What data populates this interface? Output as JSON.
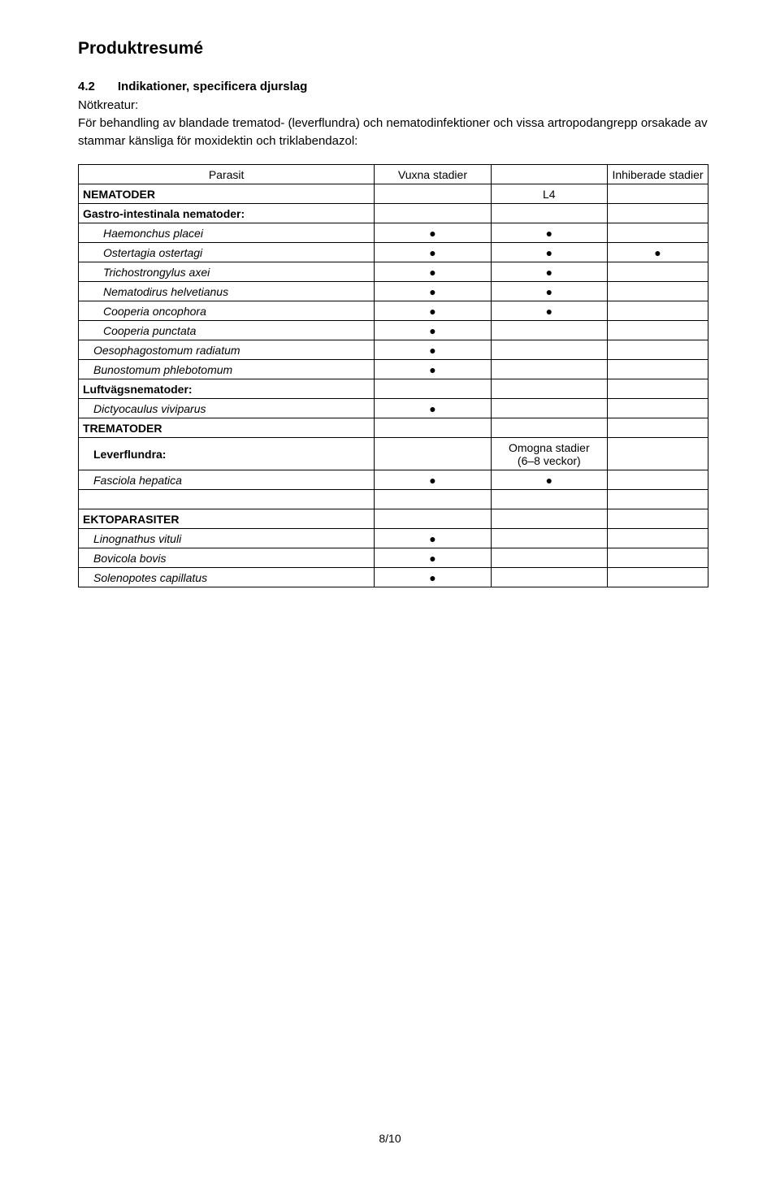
{
  "page": {
    "title": "Produktresumé",
    "section_num": "4.2",
    "section_title": "Indikationer, specificera djurslag",
    "para_line1": "Nötkreatur:",
    "para_lines": "För behandling av blandade trematod- (leverflundra) och nematodinfektioner och vissa artropodangrepp orsakade av stammar känsliga för moxidektin och triklabendazol:",
    "page_number": "8/10"
  },
  "table": {
    "headers": {
      "parasit": "Parasit",
      "vuxna": "Vuxna stadier",
      "l4_blank": "",
      "inhib": "Inhiberade stadier"
    },
    "rows": [
      {
        "label": "NEMATODER",
        "bold": true,
        "indent": 0,
        "vuxna": "",
        "l4": "L4",
        "inhib": ""
      },
      {
        "label": "Gastro-intestinala nematoder:",
        "bold": true,
        "indent": 0,
        "vuxna": "",
        "l4": "",
        "inhib": ""
      },
      {
        "label": "Haemonchus placei",
        "italic": true,
        "indent": 2,
        "vuxna": "●",
        "l4": "●",
        "inhib": ""
      },
      {
        "label": "Ostertagia ostertagi",
        "italic": true,
        "indent": 2,
        "vuxna": "●",
        "l4": "●",
        "inhib": "●"
      },
      {
        "label": "Trichostrongylus axei",
        "italic": true,
        "indent": 2,
        "vuxna": "●",
        "l4": "●",
        "inhib": ""
      },
      {
        "label": "Nematodirus helvetianus",
        "italic": true,
        "indent": 2,
        "vuxna": "●",
        "l4": "●",
        "inhib": ""
      },
      {
        "label": "Cooperia oncophora",
        "italic": true,
        "indent": 2,
        "vuxna": "●",
        "l4": "●",
        "inhib": ""
      },
      {
        "label": "Cooperia punctata",
        "italic": true,
        "indent": 2,
        "vuxna": "●",
        "l4": "",
        "inhib": ""
      },
      {
        "label": "Oesophagostomum radiatum",
        "italic": true,
        "indent": 1,
        "vuxna": "●",
        "l4": "",
        "inhib": ""
      },
      {
        "label": "Bunostomum phlebotomum",
        "italic": true,
        "indent": 1,
        "vuxna": "●",
        "l4": "",
        "inhib": ""
      },
      {
        "label": "Luftvägsnematoder:",
        "bold": true,
        "indent": 0,
        "vuxna": "",
        "l4": "",
        "inhib": ""
      },
      {
        "label": "Dictyocaulus viviparus",
        "italic": true,
        "indent": 1,
        "vuxna": "●",
        "l4": "",
        "inhib": ""
      },
      {
        "label": "TREMATODER",
        "bold": true,
        "indent": 0,
        "vuxna": "",
        "l4": "",
        "inhib": ""
      }
    ],
    "lever_row": {
      "label": "Leverflundra:",
      "l4_line1": "Omogna stadier",
      "l4_line2": "(6–8 veckor)"
    },
    "fasciola": {
      "label": "Fasciola hepatica",
      "vuxna": "●",
      "l4": "●",
      "inhib": ""
    },
    "blank": {
      "label": "",
      "vuxna": "",
      "l4": "",
      "inhib": ""
    },
    "ekto": {
      "label": "EKTOPARASITER",
      "vuxna": "",
      "l4": "",
      "inhib": ""
    },
    "lino": {
      "label": "Linognathus vituli",
      "vuxna": "●",
      "l4": "",
      "inhib": ""
    },
    "bovi": {
      "label": "Bovicola bovis",
      "vuxna": "●",
      "l4": "",
      "inhib": ""
    },
    "sole": {
      "label": "Solenopotes capillatus",
      "vuxna": "●",
      "l4": "",
      "inhib": ""
    }
  }
}
